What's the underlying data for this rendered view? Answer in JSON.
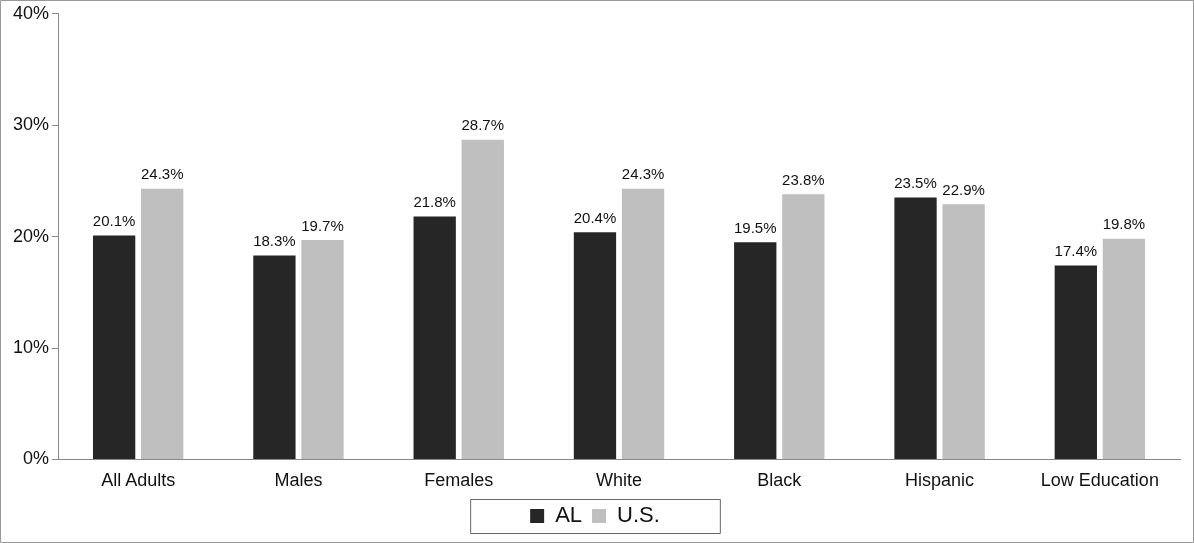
{
  "chart_data": {
    "type": "bar",
    "categories": [
      "All Adults",
      "Males",
      "Females",
      "White",
      "Black",
      "Hispanic",
      "Low Education"
    ],
    "series": [
      {
        "name": "AL",
        "color": "#262626",
        "values": [
          20.1,
          18.3,
          21.8,
          20.4,
          19.5,
          23.5,
          17.4
        ],
        "value_labels": [
          "20.1%",
          "18.3%",
          "21.8%",
          "20.4%",
          "19.5%",
          "23.5%",
          "17.4%"
        ]
      },
      {
        "name": "U.S.",
        "color": "#bfbfbf",
        "values": [
          24.3,
          19.7,
          28.7,
          24.3,
          23.8,
          22.9,
          19.8
        ],
        "value_labels": [
          "24.3%",
          "19.7%",
          "28.7%",
          "24.3%",
          "23.8%",
          "22.9%",
          "19.8%"
        ]
      }
    ],
    "ylim": [
      0,
      40
    ],
    "yticks": [
      {
        "value": 0,
        "label": "0%"
      },
      {
        "value": 10,
        "label": "10%"
      },
      {
        "value": 20,
        "label": "20%"
      },
      {
        "value": 30,
        "label": "30%"
      },
      {
        "value": 40,
        "label": "40%"
      }
    ],
    "grid": false,
    "legend": "bottom"
  }
}
